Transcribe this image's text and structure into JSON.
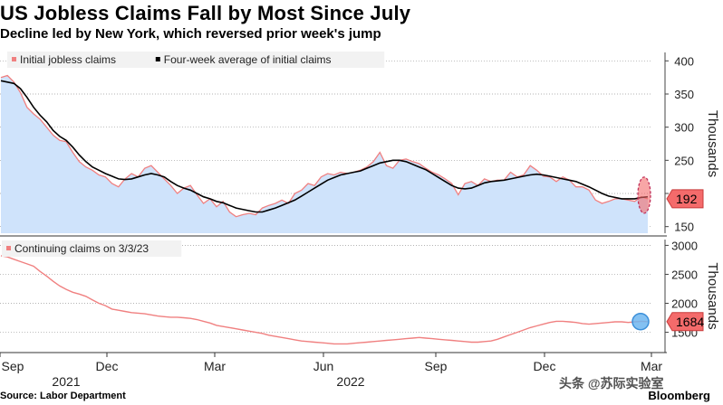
{
  "header": {
    "title": "US Jobless Claims Fall by Most Since July",
    "subtitle": "Decline led by New York, which reversed prior week's jump"
  },
  "footer": {
    "source": "Source: Labor Department",
    "brand": "Bloomberg",
    "watermark": "头条 @苏际实验室"
  },
  "colors": {
    "initial_claims": "#f08080",
    "initial_fill": "#cfe3fb",
    "four_week": "#000000",
    "continuing_claims": "#f08080",
    "label_box": "#f46b6b",
    "highlight_circle": "#6eb6f0"
  },
  "chart_data": [
    {
      "type": "area",
      "panel": "top",
      "legend": [
        "Initial jobless claims",
        "Four-week average of initial claims"
      ],
      "ylabel": "Thousands",
      "ylim": [
        140,
        410
      ],
      "yticks": [
        150,
        200,
        250,
        300,
        350,
        400
      ],
      "x_ticks": [
        "Sep",
        "Dec",
        "Mar",
        "Jun",
        "Sep",
        "Dec",
        "Mar"
      ],
      "year_labels": [
        "2021",
        "2022"
      ],
      "last_value_label": "192",
      "series": [
        {
          "name": "Initial jobless claims",
          "values": [
            375,
            378,
            368,
            352,
            330,
            320,
            312,
            300,
            288,
            280,
            278,
            262,
            248,
            240,
            235,
            228,
            225,
            215,
            210,
            222,
            230,
            225,
            238,
            242,
            232,
            222,
            212,
            200,
            208,
            212,
            198,
            185,
            192,
            180,
            188,
            172,
            165,
            168,
            170,
            168,
            178,
            182,
            185,
            190,
            185,
            200,
            205,
            215,
            212,
            225,
            230,
            228,
            232,
            230,
            232,
            235,
            240,
            248,
            262,
            242,
            238,
            250,
            252,
            248,
            245,
            238,
            232,
            228,
            222,
            215,
            198,
            215,
            218,
            212,
            222,
            218,
            220,
            220,
            232,
            225,
            228,
            242,
            235,
            226,
            225,
            218,
            225,
            220,
            210,
            210,
            205,
            190,
            185,
            188,
            192,
            192,
            190,
            188,
            195,
            192
          ]
        },
        {
          "name": "Four-week average of initial claims",
          "values": [
            370,
            368,
            366,
            358,
            345,
            330,
            318,
            308,
            295,
            286,
            280,
            270,
            258,
            248,
            240,
            235,
            230,
            226,
            222,
            221,
            222,
            225,
            228,
            230,
            228,
            225,
            218,
            212,
            208,
            205,
            200,
            195,
            192,
            188,
            186,
            182,
            178,
            176,
            174,
            172,
            172,
            175,
            178,
            182,
            186,
            190,
            196,
            202,
            208,
            214,
            220,
            224,
            228,
            230,
            232,
            234,
            238,
            242,
            246,
            248,
            250,
            250,
            248,
            244,
            240,
            236,
            230,
            224,
            218,
            212,
            208,
            207,
            208,
            212,
            216,
            218,
            219,
            220,
            222,
            224,
            226,
            228,
            229,
            228,
            226,
            224,
            222,
            220,
            218,
            214,
            210,
            205,
            200,
            196,
            194,
            192,
            192,
            192,
            194,
            195
          ]
        }
      ]
    },
    {
      "type": "line",
      "panel": "bottom",
      "legend": [
        "Continuing claims on 3/3/23"
      ],
      "ylabel": "Thousands",
      "ylim": [
        1150,
        3100
      ],
      "yticks": [
        1500,
        2000,
        2500,
        3000
      ],
      "last_value_label": "1684",
      "series": [
        {
          "name": "Continuing claims on 3/3/23",
          "values": [
            2820,
            2800,
            2760,
            2720,
            2680,
            2640,
            2550,
            2470,
            2380,
            2300,
            2240,
            2190,
            2160,
            2120,
            2060,
            2000,
            1960,
            1900,
            1880,
            1860,
            1840,
            1830,
            1820,
            1800,
            1780,
            1770,
            1760,
            1760,
            1750,
            1740,
            1720,
            1690,
            1660,
            1620,
            1600,
            1580,
            1560,
            1540,
            1520,
            1500,
            1480,
            1450,
            1430,
            1410,
            1390,
            1370,
            1350,
            1340,
            1330,
            1320,
            1310,
            1300,
            1300,
            1300,
            1310,
            1320,
            1330,
            1340,
            1350,
            1360,
            1370,
            1380,
            1390,
            1400,
            1410,
            1400,
            1390,
            1380,
            1370,
            1360,
            1350,
            1340,
            1330,
            1330,
            1340,
            1350,
            1380,
            1420,
            1460,
            1500,
            1540,
            1580,
            1610,
            1640,
            1670,
            1690,
            1690,
            1680,
            1670,
            1650,
            1640,
            1650,
            1660,
            1670,
            1680,
            1680,
            1670,
            1680,
            1690,
            1684
          ]
        }
      ]
    }
  ]
}
